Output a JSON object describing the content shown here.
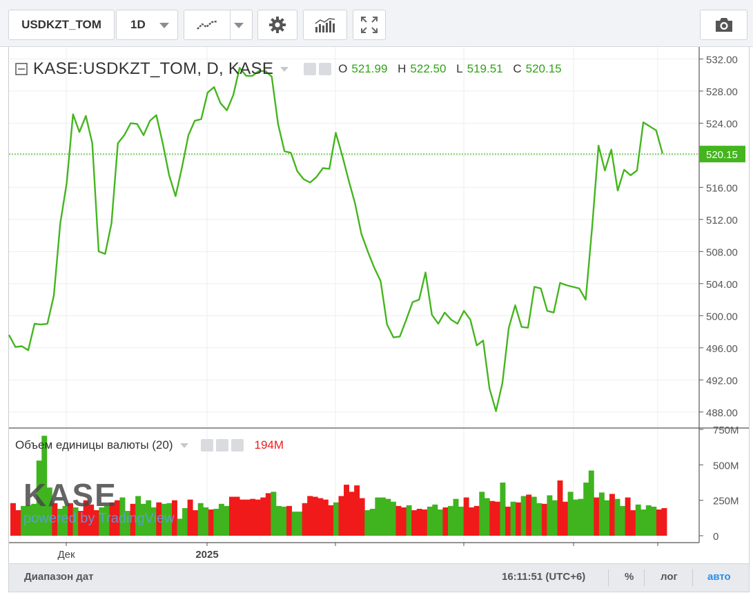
{
  "toolbar": {
    "symbol": "USDKZT_TOM",
    "interval": "1D",
    "icons": [
      "line-style-icon",
      "chevron-down-icon",
      "gear-icon",
      "indicators-icon",
      "fullscreen-icon",
      "camera-icon"
    ]
  },
  "legend": {
    "title": "KASE:USDKZT_TOM, D, KASE",
    "o_label": "O",
    "o_value": "521.99",
    "h_label": "H",
    "h_value": "522.50",
    "l_label": "L",
    "l_value": "519.51",
    "c_label": "C",
    "c_value": "520.15"
  },
  "volume_legend": {
    "title": "Объем единицы валюты (20)",
    "value": "194M"
  },
  "watermark": {
    "logo": "KASE",
    "powered": "powered by TradingView"
  },
  "bottom_bar": {
    "range_label": "Диапазон дат",
    "time": "16:11:51 (UTC+6)",
    "percent": "%",
    "log": "лог",
    "auto": "авто"
  },
  "colors": {
    "line": "#44b51e",
    "up": "#3fb41e",
    "down": "#f01a1a",
    "accent": "#2b8ee6"
  },
  "chart_data": [
    {
      "type": "line",
      "title": "KASE:USDKZT_TOM, D, KASE",
      "ylim": [
        486,
        533.5
      ],
      "y_ticks": [
        "532.00",
        "528.00",
        "524.00",
        "520.00",
        "516.00",
        "512.00",
        "508.00",
        "504.00",
        "500.00",
        "496.00",
        "492.00",
        "488.00"
      ],
      "y_tick_values": [
        532,
        528,
        524,
        520,
        516,
        512,
        508,
        504,
        500,
        496,
        492,
        488
      ],
      "last_price_label": "520.15",
      "last_price": 520.15,
      "x_labels": [
        "Дек",
        "2025"
      ],
      "values": [
        497.6,
        496.1,
        496.2,
        495.7,
        499.0,
        498.9,
        499.0,
        502.5,
        511.5,
        516.5,
        525.1,
        522.9,
        524.9,
        521.5,
        508.0,
        507.7,
        511.5,
        521.5,
        522.5,
        524.0,
        523.9,
        522.5,
        524.3,
        525.0,
        521.5,
        517.5,
        514.9,
        518.5,
        522.5,
        524.3,
        524.5,
        527.8,
        528.5,
        526.5,
        525.6,
        527.5,
        530.9,
        529.9,
        529.9,
        530.5,
        530.5,
        529.8,
        523.9,
        520.5,
        520.3,
        518.0,
        517.0,
        516.6,
        517.3,
        518.4,
        518.3,
        522.8,
        520.0,
        516.9,
        514.0,
        510.2,
        508.0,
        506.0,
        504.3,
        498.9,
        497.3,
        497.4,
        499.5,
        501.7,
        502.0,
        505.4,
        500.1,
        499.0,
        500.4,
        499.5,
        499.0,
        500.6,
        499.5,
        496.3,
        496.9,
        490.9,
        488.1,
        491.6,
        498.5,
        501.3,
        498.6,
        498.5,
        503.6,
        503.4,
        500.6,
        500.4,
        504.1,
        503.8,
        503.6,
        503.4,
        502.0,
        511.0,
        521.2,
        518.1,
        520.7,
        515.6,
        518.2,
        517.5,
        518.1,
        524.1,
        523.6,
        523.1,
        520.2
      ]
    },
    {
      "type": "bar",
      "title": "Объем единицы валюты (20)",
      "ylim": [
        0,
        750
      ],
      "y_ticks": [
        "750M",
        "500M",
        "250M",
        "0"
      ],
      "y_tick_values": [
        750,
        500,
        250,
        0
      ],
      "unit": "M",
      "values": [
        230,
        180,
        210,
        215,
        225,
        530,
        705,
        340,
        230,
        190,
        210,
        230,
        200,
        175,
        250,
        220,
        180,
        200,
        210,
        235,
        250,
        270,
        175,
        225,
        280,
        225,
        250,
        200,
        235,
        225,
        230,
        250,
        120,
        195,
        255,
        180,
        230,
        200,
        185,
        190,
        225,
        210,
        275,
        275,
        255,
        255,
        260,
        255,
        270,
        300,
        310,
        210,
        205,
        210,
        170,
        170,
        230,
        280,
        275,
        265,
        255,
        215,
        235,
        280,
        360,
        310,
        355,
        265,
        180,
        190,
        270,
        270,
        260,
        240,
        210,
        200,
        215,
        180,
        190,
        185,
        205,
        220,
        185,
        200,
        210,
        260,
        205,
        270,
        200,
        210,
        310,
        265,
        245,
        240,
        375,
        205,
        240,
        235,
        280,
        290,
        275,
        230,
        225,
        285,
        250,
        390,
        240,
        310,
        255,
        260,
        375,
        460,
        270,
        305,
        250,
        295,
        260,
        210,
        270,
        180,
        220,
        185,
        215,
        205,
        185,
        195
      ],
      "colors": [
        "down",
        "down",
        "up",
        "up",
        "up",
        "up",
        "up",
        "up",
        "down",
        "up",
        "up",
        "down",
        "up",
        "down",
        "down",
        "down",
        "down",
        "up",
        "up",
        "down",
        "down",
        "up",
        "up",
        "down",
        "up",
        "up",
        "up",
        "up",
        "down",
        "up",
        "up",
        "down",
        "up",
        "up",
        "down",
        "down",
        "up",
        "up",
        "down",
        "up",
        "up",
        "up",
        "down",
        "down",
        "down",
        "down",
        "down",
        "down",
        "down",
        "down",
        "up",
        "up",
        "up",
        "down",
        "up",
        "up",
        "down",
        "down",
        "down",
        "down",
        "down",
        "down",
        "up",
        "down",
        "down",
        "down",
        "down",
        "down",
        "up",
        "up",
        "up",
        "up",
        "up",
        "up",
        "down",
        "down",
        "up",
        "down",
        "down",
        "down",
        "up",
        "up",
        "up",
        "down",
        "up",
        "up",
        "up",
        "down",
        "down",
        "down",
        "up",
        "up",
        "down",
        "down",
        "up",
        "down",
        "up",
        "down",
        "up",
        "down",
        "up",
        "up",
        "down",
        "up",
        "up",
        "down",
        "down",
        "up",
        "up",
        "up",
        "up",
        "up",
        "down",
        "up",
        "up",
        "down",
        "up",
        "up",
        "down",
        "down",
        "up",
        "up",
        "up",
        "up",
        "down",
        "down"
      ]
    }
  ]
}
